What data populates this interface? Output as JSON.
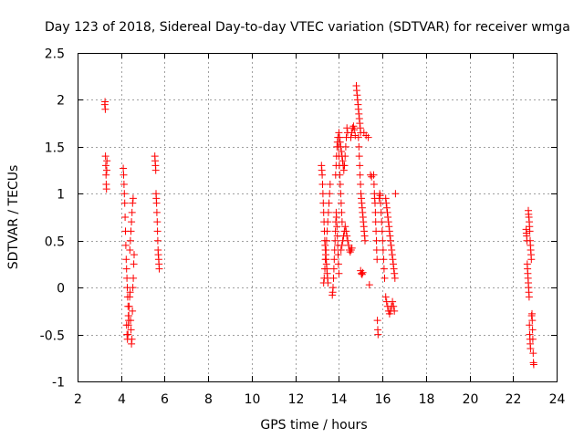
{
  "chart_data": {
    "type": "scatter",
    "title": "Day 123 of 2018, Sidereal Day-to-day VTEC variation (SDTVAR) for receiver wmga",
    "xlabel": "GPS time / hours",
    "ylabel": "SDTVAR / TECUs",
    "xlim": [
      2,
      24
    ],
    "ylim": [
      -1,
      2.5
    ],
    "xticks": [
      2,
      4,
      6,
      8,
      10,
      12,
      14,
      16,
      18,
      20,
      22,
      24
    ],
    "yticks": [
      -1,
      -0.5,
      0,
      0.5,
      1,
      1.5,
      2,
      2.5
    ],
    "ytick_labels": [
      "-1",
      "-0.5",
      "0",
      "0.5",
      "1",
      "1.5",
      "2",
      "2.5"
    ],
    "grid": true,
    "marker": "+",
    "color": "#ff0000",
    "segments": [
      {
        "t0": 3.25,
        "t1": 3.35,
        "v": [
          1.95,
          1.98,
          1.9,
          1.4,
          1.3,
          1.2,
          1.1,
          1.05,
          1.25,
          1.35
        ]
      },
      {
        "t0": 4.1,
        "t1": 4.35,
        "v": [
          1.27,
          1.2,
          1.1,
          1.0,
          0.9,
          0.75,
          0.6,
          0.45,
          0.3,
          0.2,
          0.1,
          0.0,
          -0.1,
          -0.2,
          -0.3,
          -0.35
        ]
      },
      {
        "t0": 4.25,
        "t1": 4.6,
        "v": [
          -0.4,
          -0.5,
          -0.55,
          -0.5,
          -0.4,
          -0.3,
          -0.2,
          -0.1,
          -0.05,
          -0.35,
          -0.45,
          -0.6,
          -0.55,
          -0.25,
          0.0,
          0.1,
          0.25,
          0.35
        ]
      },
      {
        "t0": 4.4,
        "t1": 4.55,
        "v": [
          0.4,
          0.5,
          0.6,
          0.7,
          0.8,
          0.9,
          0.95
        ]
      },
      {
        "t0": 5.55,
        "t1": 5.75,
        "v": [
          1.4,
          1.35,
          1.3,
          1.25,
          1.0,
          0.95,
          0.9,
          0.8,
          0.7,
          0.6,
          0.5,
          0.4,
          0.35,
          0.3,
          0.25,
          0.2
        ]
      },
      {
        "t0": 13.2,
        "t1": 13.5,
        "v": [
          1.3,
          1.25,
          1.2,
          1.1,
          1.0,
          0.9,
          0.8,
          0.7,
          0.6,
          0.5,
          0.45,
          0.4,
          0.35,
          0.3,
          0.25,
          0.2,
          0.15,
          0.1,
          0.05
        ]
      },
      {
        "t0": 13.3,
        "t1": 13.6,
        "v": [
          0.05,
          0.1,
          0.2,
          0.3,
          0.4,
          0.5,
          0.6,
          0.7,
          0.8,
          0.9,
          1.0,
          1.1
        ]
      },
      {
        "t0": 13.7,
        "t1": 14.0,
        "v": [
          -0.08,
          -0.05,
          0.0,
          0.1,
          0.2,
          0.3,
          0.4,
          0.5,
          0.6,
          0.7,
          0.8,
          0.75,
          0.65,
          0.55,
          0.45,
          0.35,
          0.25,
          0.15
        ]
      },
      {
        "t0": 13.85,
        "t1": 14.15,
        "v": [
          1.2,
          1.3,
          1.4,
          1.5,
          1.55,
          1.6,
          1.5,
          1.4,
          1.3,
          1.2,
          1.1,
          1.0,
          0.9,
          0.8,
          0.7
        ]
      },
      {
        "t0": 14.0,
        "t1": 14.4,
        "v": [
          1.65,
          1.6,
          1.55,
          1.5,
          1.45,
          1.4,
          1.35,
          1.3,
          1.25,
          1.3,
          1.4,
          1.5,
          1.6,
          1.7,
          1.65
        ]
      },
      {
        "t0": 14.1,
        "t1": 14.6,
        "v": [
          0.4,
          0.45,
          0.5,
          0.55,
          0.6,
          0.65,
          0.6,
          0.55,
          0.5,
          0.45,
          0.4,
          0.38,
          0.4,
          0.42
        ]
      },
      {
        "t0": 14.55,
        "t1": 14.75,
        "v": [
          1.6,
          1.65,
          1.7,
          1.72,
          1.68,
          1.62
        ]
      },
      {
        "t0": 14.8,
        "t1": 15.0,
        "v": [
          2.15,
          2.1,
          2.05,
          2.0,
          1.95,
          1.9,
          1.85,
          1.8,
          1.75,
          1.7,
          1.65
        ]
      },
      {
        "t0": 14.9,
        "t1": 15.2,
        "v": [
          1.6,
          1.5,
          1.4,
          1.3,
          1.2,
          1.1,
          1.0,
          0.95,
          0.9,
          0.85,
          0.8,
          0.75,
          0.7,
          0.65,
          0.6,
          0.55,
          0.5
        ]
      },
      {
        "t0": 15.0,
        "t1": 15.1,
        "v": [
          0.18,
          0.15,
          0.14,
          0.16
        ]
      },
      {
        "t0": 15.15,
        "t1": 15.35,
        "v": [
          1.65,
          1.62,
          1.6
        ]
      },
      {
        "t0": 15.4,
        "t1": 15.5,
        "v": [
          0.03,
          1.2,
          1.18
        ]
      },
      {
        "t0": 15.6,
        "t1": 15.8,
        "v": [
          1.2,
          1.1,
          1.0,
          0.95,
          0.9,
          0.8,
          0.7,
          0.6,
          0.5,
          0.4,
          0.3,
          -0.35,
          -0.45,
          -0.5
        ]
      },
      {
        "t0": 15.85,
        "t1": 16.1,
        "v": [
          0.95,
          1.0,
          0.98,
          0.9,
          0.8,
          0.7,
          0.6,
          0.5,
          0.4,
          0.3,
          0.2,
          0.1
        ]
      },
      {
        "t0": 16.15,
        "t1": 16.6,
        "v": [
          0.95,
          0.9,
          0.85,
          0.8,
          0.75,
          0.7,
          0.65,
          0.6,
          0.55,
          0.5,
          0.45,
          0.4,
          0.35,
          0.3,
          0.25,
          0.2,
          0.15,
          0.1,
          1.0
        ]
      },
      {
        "t0": 16.15,
        "t1": 16.55,
        "v": [
          -0.1,
          -0.15,
          -0.2,
          -0.25,
          -0.28,
          -0.25,
          -0.2,
          -0.15,
          -0.2,
          -0.25
        ]
      },
      {
        "t0": 22.6,
        "t1": 22.8,
        "v": [
          0.62,
          0.58,
          0.55,
          0.5,
          0.25,
          0.2,
          0.15,
          0.1,
          0.05,
          0.0,
          -0.05,
          -0.1,
          -0.4,
          -0.5,
          -0.55,
          -0.6,
          -0.65
        ]
      },
      {
        "t0": 22.7,
        "t1": 22.95,
        "v": [
          0.82,
          0.78,
          0.75,
          0.7,
          0.65,
          0.6,
          0.5,
          0.45,
          0.4,
          0.35,
          0.3,
          -0.3,
          -0.28,
          -0.35,
          -0.45,
          -0.55,
          -0.7,
          -0.8,
          -0.82
        ]
      }
    ]
  }
}
